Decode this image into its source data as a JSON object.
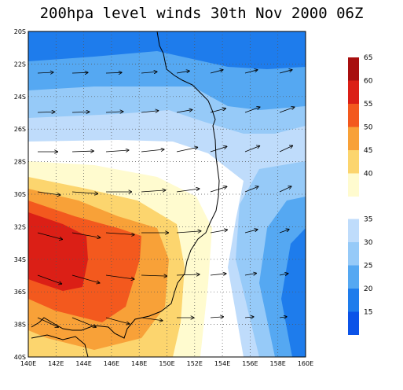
{
  "title": "200hpa level winds 30th Nov 2000 06Z",
  "map": {
    "lon_range": [
      140,
      160
    ],
    "lat_range": [
      -40,
      -20
    ],
    "lat_ticks": [
      "20S",
      "22S",
      "24S",
      "26S",
      "28S",
      "30S",
      "32S",
      "34S",
      "36S",
      "38S",
      "40S"
    ],
    "lon_ticks": [
      "140E",
      "142E",
      "144E",
      "146E",
      "148E",
      "150E",
      "152E",
      "154E",
      "156E",
      "158E",
      "160E"
    ],
    "grid": "dotted",
    "vectors": "wind arrows"
  },
  "colorbar_upper": {
    "colors": [
      "#fffbcf",
      "#fcd56e",
      "#f8a138",
      "#f3591e",
      "#db1f16",
      "#a80f0f"
    ],
    "labels": [
      "40",
      "45",
      "50",
      "55",
      "60",
      "65"
    ]
  },
  "colorbar_lower": {
    "colors": [
      "#0b53e8",
      "#1e7cec",
      "#55a8f2",
      "#96caf8",
      "#bfdcfb"
    ],
    "labels": [
      "15",
      "20",
      "25",
      "30",
      "35"
    ]
  }
}
